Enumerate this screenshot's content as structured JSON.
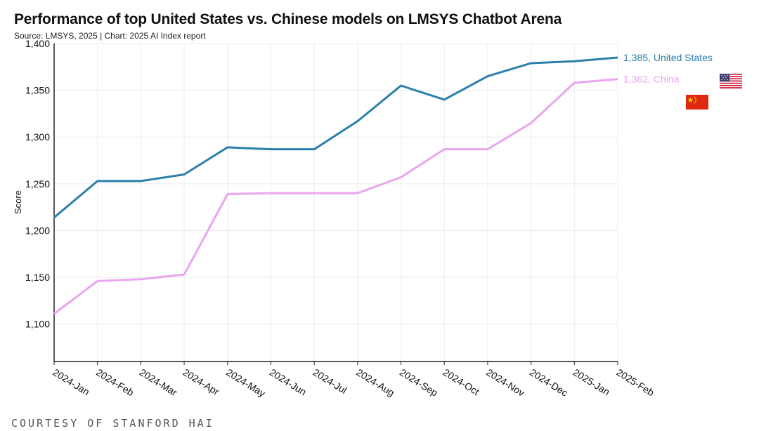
{
  "header": {
    "title": "Performance of top United States vs. Chinese models on LMSYS Chatbot Arena",
    "source": "Source: LMSYS, 2025 | Chart: 2025 AI Index report"
  },
  "footer": {
    "courtesy": "COURTESY OF STANFORD HAI"
  },
  "chart_data": {
    "type": "line",
    "title": "Performance of top United States vs. Chinese models on LMSYS Chatbot Arena",
    "xlabel": "",
    "ylabel": "Score",
    "ylim": [
      1060,
      1400
    ],
    "yticks": [
      1100,
      1150,
      1200,
      1250,
      1300,
      1350,
      1400
    ],
    "ytick_labels": [
      "1,100",
      "1,150",
      "1,200",
      "1,250",
      "1,300",
      "1,350",
      "1,400"
    ],
    "grid": true,
    "categories": [
      "2024-Jan",
      "2024-Feb",
      "2024-Mar",
      "2024-Apr",
      "2024-May",
      "2024-Jun",
      "2024-Jul",
      "2024-Aug",
      "2024-Sep",
      "2024-Oct",
      "2024-Nov",
      "2024-Dec",
      "2025-Jan",
      "2025-Feb"
    ],
    "series": [
      {
        "name": "United States",
        "color": "#2a7fad",
        "values": [
          1214,
          1253,
          1253,
          1260,
          1289,
          1287,
          1287,
          1317,
          1355,
          1340,
          1365,
          1379,
          1381,
          1385
        ],
        "end_label": "1,385, United States",
        "flag_icon": "us-flag-icon"
      },
      {
        "name": "China",
        "color": "#e9a6ef",
        "values": [
          1111,
          1146,
          1148,
          1153,
          1239,
          1240,
          1240,
          1240,
          1257,
          1287,
          1287,
          1315,
          1358,
          1362
        ],
        "end_label": "1,362, China",
        "flag_icon": "china-flag-icon"
      }
    ]
  }
}
